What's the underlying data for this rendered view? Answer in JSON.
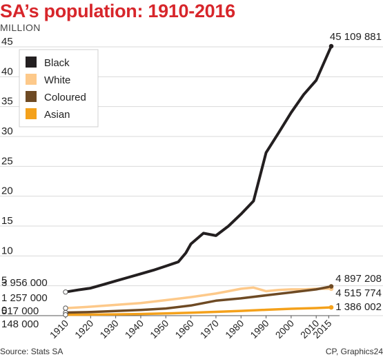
{
  "title": "SA’s population: 1910-2016",
  "unit_label": "MILLION",
  "source": "Source: Stats SA",
  "credit": "CP, Graphics24",
  "chart_data": {
    "type": "line",
    "xlabel": "",
    "ylabel": "MILLION",
    "xlim": [
      1910,
      2016
    ],
    "ylim": [
      0,
      45
    ],
    "y_ticks": [
      "0",
      "5",
      "10",
      "15",
      "20",
      "25",
      "30",
      "35",
      "40",
      "45"
    ],
    "x_ticks": [
      "1910",
      "1920",
      "1930",
      "1940",
      "1950",
      "1960",
      "1970",
      "1980",
      "1990",
      "2000",
      "2010",
      "2015"
    ],
    "grid": true,
    "legend_position": "top-left",
    "series": [
      {
        "name": "Black",
        "color": "#231f20",
        "x": [
          1910,
          1915,
          1920,
          1925,
          1930,
          1935,
          1940,
          1945,
          1950,
          1955,
          1958,
          1960,
          1965,
          1970,
          1975,
          1980,
          1985,
          1990,
          1995,
          2000,
          2005,
          2010,
          2016
        ],
        "y": [
          3.956,
          4.3,
          4.6,
          5.2,
          5.8,
          6.4,
          7.0,
          7.6,
          8.3,
          9.0,
          10.5,
          12.0,
          13.8,
          13.4,
          15.0,
          17.0,
          19.2,
          27.3,
          30.6,
          34.0,
          37.0,
          39.4,
          45.109881
        ],
        "start_label": "3 956 000",
        "end_label": "45 109 881"
      },
      {
        "name": "White",
        "color": "#fdc98a",
        "x": [
          1910,
          1920,
          1930,
          1940,
          1950,
          1960,
          1970,
          1975,
          1980,
          1985,
          1990,
          1995,
          2000,
          2005,
          2010,
          2016
        ],
        "y": [
          1.257,
          1.5,
          1.8,
          2.1,
          2.6,
          3.1,
          3.7,
          4.1,
          4.5,
          4.7,
          4.1,
          4.3,
          4.4,
          4.4,
          4.5,
          4.515774
        ],
        "start_label": "1 257 000",
        "end_label": "4 515 774"
      },
      {
        "name": "Coloured",
        "color": "#6e4a24",
        "x": [
          1910,
          1920,
          1930,
          1940,
          1950,
          1960,
          1970,
          1980,
          1990,
          2000,
          2010,
          2016
        ],
        "y": [
          0.517,
          0.6,
          0.77,
          0.95,
          1.2,
          1.7,
          2.5,
          2.9,
          3.4,
          3.9,
          4.4,
          4.897208
        ],
        "start_label": "517 000",
        "end_label": "4 897 208"
      },
      {
        "name": "Asian",
        "color": "#f4a11b",
        "x": [
          1910,
          1920,
          1930,
          1940,
          1950,
          1960,
          1970,
          1980,
          1990,
          2000,
          2010,
          2016
        ],
        "y": [
          0.148,
          0.17,
          0.22,
          0.28,
          0.37,
          0.5,
          0.63,
          0.8,
          0.98,
          1.15,
          1.27,
          1.386002
        ],
        "start_label": "148 000",
        "end_label": "1 386 002"
      }
    ]
  }
}
